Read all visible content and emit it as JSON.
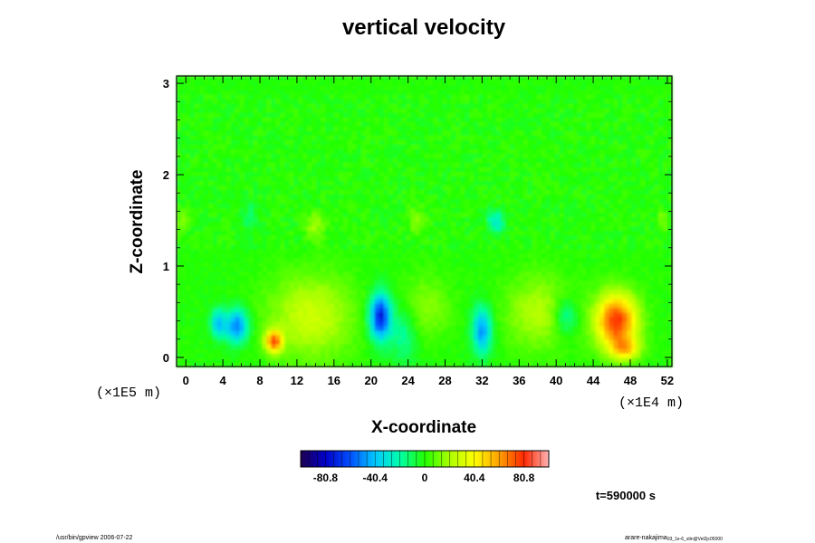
{
  "chart_data": {
    "type": "heatmap",
    "title": "vertical velocity",
    "xlabel": "X-coordinate",
    "ylabel": "Z-coordinate",
    "x_unit": "(×1E4 m)",
    "y_unit": "(×1E5 m)",
    "xlim": [
      -1,
      52.5
    ],
    "ylim": [
      -0.1,
      3.08
    ],
    "x_ticks": [
      0,
      4,
      8,
      12,
      16,
      20,
      24,
      28,
      32,
      36,
      40,
      44,
      48,
      52
    ],
    "x_tick_labels": [
      "0",
      "4",
      "8",
      "12",
      "16",
      "20",
      "24",
      "28",
      "32",
      "36",
      "40",
      "44",
      "48",
      "52"
    ],
    "y_ticks": [
      0,
      1,
      2,
      3
    ],
    "y_tick_labels": [
      "0",
      "1",
      "2",
      "3"
    ],
    "background_value": 0,
    "features": [
      {
        "x": 46.5,
        "z": 0.4,
        "value": 80,
        "rx": 2.2,
        "rz": 0.3
      },
      {
        "x": 9.5,
        "z": 0.18,
        "value": 70,
        "rx": 0.9,
        "rz": 0.12
      },
      {
        "x": 47.5,
        "z": 0.1,
        "value": 40,
        "rx": 1.5,
        "rz": 0.12
      },
      {
        "x": 21.0,
        "z": 0.45,
        "value": -75,
        "rx": 1.1,
        "rz": 0.25
      },
      {
        "x": 5.5,
        "z": 0.35,
        "value": -55,
        "rx": 1.2,
        "rz": 0.18
      },
      {
        "x": 3.5,
        "z": 0.38,
        "value": -40,
        "rx": 0.8,
        "rz": 0.15
      },
      {
        "x": 32.0,
        "z": 0.3,
        "value": -50,
        "rx": 1.0,
        "rz": 0.25
      },
      {
        "x": 41.0,
        "z": 0.45,
        "value": -25,
        "rx": 1.2,
        "rz": 0.2
      },
      {
        "x": 33.5,
        "z": 1.48,
        "value": -30,
        "rx": 0.9,
        "rz": 0.12
      },
      {
        "x": 23.5,
        "z": 0.25,
        "value": -20,
        "rx": 1.5,
        "rz": 0.3
      },
      {
        "x": 13.5,
        "z": 0.45,
        "value": 28,
        "rx": 4.5,
        "rz": 0.45
      },
      {
        "x": 38.0,
        "z": 0.5,
        "value": 22,
        "rx": 3.5,
        "rz": 0.4
      },
      {
        "x": 26.0,
        "z": 0.55,
        "value": 15,
        "rx": 2.5,
        "rz": 0.35
      },
      {
        "x": 14.0,
        "z": 1.45,
        "value": 18,
        "rx": 1.0,
        "rz": 0.15
      },
      {
        "x": 25.0,
        "z": 1.5,
        "value": 15,
        "rx": 1.0,
        "rz": 0.15
      },
      {
        "x": -0.3,
        "z": 1.5,
        "value": 15,
        "rx": 0.6,
        "rz": 0.12
      },
      {
        "x": 7.0,
        "z": 1.55,
        "value": -12,
        "rx": 1.0,
        "rz": 0.15
      },
      {
        "x": 51.5,
        "z": 1.5,
        "value": 15,
        "rx": 0.6,
        "rz": 0.12
      }
    ],
    "colorbar": {
      "min": -101,
      "max": 101,
      "ticks": [
        -80.8,
        -40.4,
        0,
        40.4,
        80.8
      ],
      "tick_labels": [
        "-80.8",
        "-40.4",
        "0",
        "40.4",
        "80.8"
      ],
      "stops": [
        {
          "v": -101,
          "c": "#1e0050"
        },
        {
          "v": -80.8,
          "c": "#0000c8"
        },
        {
          "v": -60.6,
          "c": "#0050ff"
        },
        {
          "v": -40.4,
          "c": "#00c8ff"
        },
        {
          "v": -20.2,
          "c": "#00ffaa"
        },
        {
          "v": 0,
          "c": "#22ff00"
        },
        {
          "v": 20.2,
          "c": "#aaff00"
        },
        {
          "v": 40.4,
          "c": "#ffff00"
        },
        {
          "v": 60.6,
          "c": "#ffa000"
        },
        {
          "v": 80.8,
          "c": "#ff2800"
        },
        {
          "v": 101,
          "c": "#ffb4b4"
        }
      ]
    },
    "time_label": "t=590000 s"
  },
  "footer": {
    "left": "/usr/bin/gpview 2006-07-22",
    "right": "arare-nakajima",
    "right_sub": "03_1e-6_stin@Vel2jc05000"
  }
}
